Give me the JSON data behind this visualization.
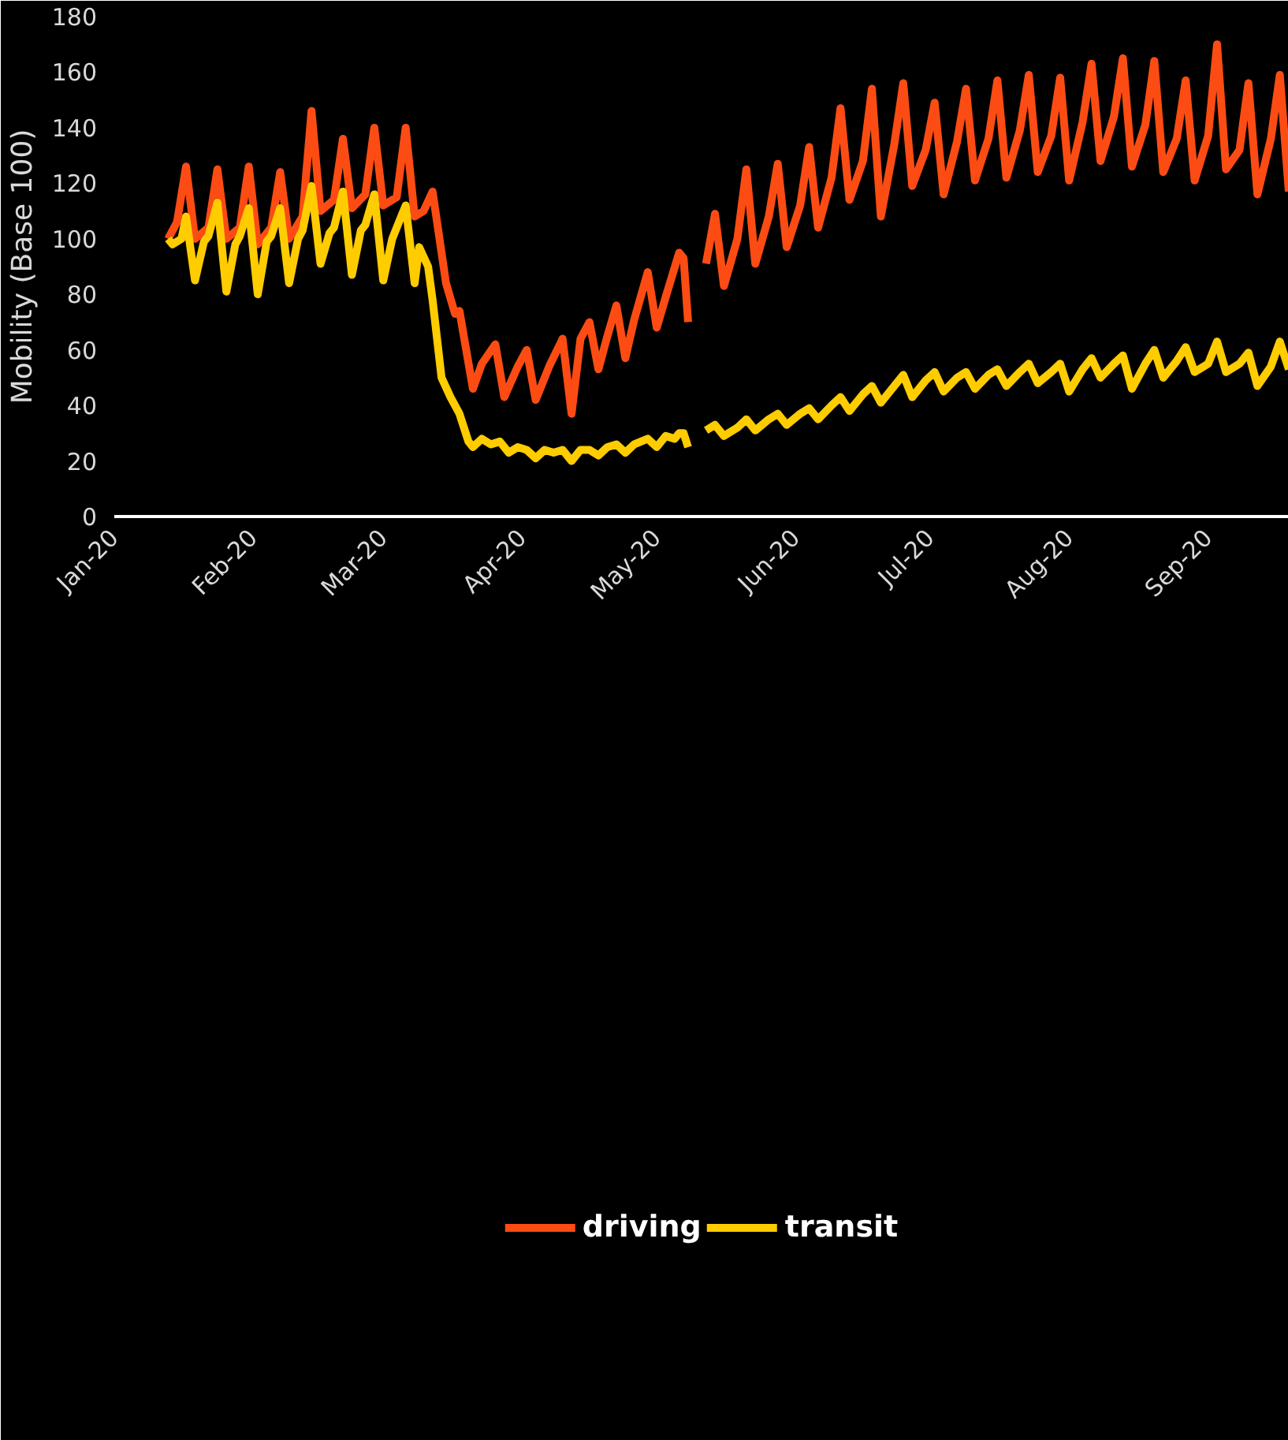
{
  "chart_data": {
    "type": "line",
    "ylabel": "Mobility (Base 100)",
    "ylim": [
      0,
      180
    ],
    "yticks": [
      0,
      20,
      40,
      60,
      80,
      100,
      120,
      140,
      160,
      180
    ],
    "xlim": [
      "2020-01-01",
      "2020-09-19"
    ],
    "xticks": [
      {
        "value": "2020-01-01",
        "label": "Jan-20"
      },
      {
        "value": "2020-02-01",
        "label": "Feb-20"
      },
      {
        "value": "2020-03-01",
        "label": "Mar-20"
      },
      {
        "value": "2020-04-01",
        "label": "Apr-20"
      },
      {
        "value": "2020-05-01",
        "label": "May-20"
      },
      {
        "value": "2020-06-01",
        "label": "Jun-20"
      },
      {
        "value": "2020-07-01",
        "label": "Jul-20"
      },
      {
        "value": "2020-08-01",
        "label": "Aug-20"
      },
      {
        "value": "2020-09-01",
        "label": "Sep-20"
      }
    ],
    "grid": false,
    "legend": "bottom",
    "marker": "none",
    "line_style": "solid",
    "series": [
      {
        "name": "driving",
        "color": "#fc4c13",
        "x": [
          "2020-01-13",
          "2020-01-15",
          "2020-01-17",
          "2020-01-19",
          "2020-01-22",
          "2020-01-24",
          "2020-01-26",
          "2020-01-29",
          "2020-01-31",
          "2020-02-02",
          "2020-02-05",
          "2020-02-07",
          "2020-02-09",
          "2020-02-12",
          "2020-02-14",
          "2020-02-16",
          "2020-02-19",
          "2020-02-21",
          "2020-02-23",
          "2020-02-26",
          "2020-02-28",
          "2020-03-01",
          "2020-03-04",
          "2020-03-06",
          "2020-03-08",
          "2020-03-10",
          "2020-03-12",
          "2020-03-15",
          "2020-03-17",
          "2020-03-18",
          "2020-03-21",
          "2020-03-23",
          "2020-03-26",
          "2020-03-28",
          "2020-03-31",
          "2020-04-02",
          "2020-04-04",
          "2020-04-07",
          "2020-04-10",
          "2020-04-12",
          "2020-04-14",
          "2020-04-16",
          "2020-04-18",
          "2020-04-20",
          "2020-04-22",
          "2020-04-24",
          "2020-04-26",
          "2020-04-29",
          "2020-05-01",
          "2020-05-03",
          "2020-05-06",
          "2020-05-07",
          "2020-05-08",
          "2020-05-10",
          "2020-05-12",
          "2020-05-14",
          "2020-05-16",
          "2020-05-19",
          "2020-05-21",
          "2020-05-23",
          "2020-05-26",
          "2020-05-28",
          "2020-05-30",
          "2020-06-02",
          "2020-06-04",
          "2020-06-06",
          "2020-06-09",
          "2020-06-11",
          "2020-06-13",
          "2020-06-16",
          "2020-06-18",
          "2020-06-20",
          "2020-06-23",
          "2020-06-25",
          "2020-06-27",
          "2020-06-30",
          "2020-07-02",
          "2020-07-04",
          "2020-07-07",
          "2020-07-09",
          "2020-07-11",
          "2020-07-14",
          "2020-07-16",
          "2020-07-18",
          "2020-07-21",
          "2020-07-23",
          "2020-07-25",
          "2020-07-28",
          "2020-07-30",
          "2020-08-01",
          "2020-08-04",
          "2020-08-06",
          "2020-08-08",
          "2020-08-11",
          "2020-08-13",
          "2020-08-15",
          "2020-08-18",
          "2020-08-20",
          "2020-08-22",
          "2020-08-25",
          "2020-08-27",
          "2020-08-29",
          "2020-09-01",
          "2020-09-03",
          "2020-09-05",
          "2020-09-08",
          "2020-09-10",
          "2020-09-12",
          "2020-09-15",
          "2020-09-17",
          "2020-09-19"
        ],
        "values": [
          100,
          106,
          126,
          100,
          104,
          125,
          100,
          104,
          126,
          98,
          104,
          124,
          100,
          108,
          146,
          110,
          114,
          136,
          111,
          116,
          140,
          112,
          115,
          140,
          108,
          110,
          117,
          84,
          73,
          74,
          46,
          55,
          62,
          43,
          54,
          60,
          42,
          54,
          64,
          37,
          64,
          70,
          53,
          65,
          76,
          57,
          71,
          88,
          68,
          79,
          95,
          93,
          70,
          null,
          91,
          109,
          83,
          100,
          125,
          91,
          108,
          127,
          97,
          112,
          133,
          104,
          122,
          147,
          114,
          128,
          154,
          108,
          134,
          156,
          119,
          132,
          149,
          116,
          135,
          154,
          121,
          136,
          157,
          122,
          139,
          159,
          124,
          137,
          158,
          121,
          142,
          163,
          128,
          144,
          165,
          126,
          141,
          164,
          124,
          136,
          157,
          121,
          137,
          170,
          125,
          132,
          156,
          116,
          136,
          159,
          117
        ]
      },
      {
        "name": "transit",
        "color": "#ffcc00",
        "x": [
          "2020-01-13",
          "2020-01-14",
          "2020-01-16",
          "2020-01-17",
          "2020-01-19",
          "2020-01-21",
          "2020-01-22",
          "2020-01-24",
          "2020-01-26",
          "2020-01-28",
          "2020-01-29",
          "2020-01-31",
          "2020-02-02",
          "2020-02-04",
          "2020-02-05",
          "2020-02-07",
          "2020-02-09",
          "2020-02-11",
          "2020-02-12",
          "2020-02-14",
          "2020-02-16",
          "2020-02-18",
          "2020-02-19",
          "2020-02-21",
          "2020-02-23",
          "2020-02-25",
          "2020-02-26",
          "2020-02-28",
          "2020-03-01",
          "2020-03-03",
          "2020-03-04",
          "2020-03-06",
          "2020-03-08",
          "2020-03-09",
          "2020-03-11",
          "2020-03-12",
          "2020-03-14",
          "2020-03-16",
          "2020-03-18",
          "2020-03-20",
          "2020-03-21",
          "2020-03-23",
          "2020-03-25",
          "2020-03-27",
          "2020-03-29",
          "2020-03-31",
          "2020-04-02",
          "2020-04-04",
          "2020-04-06",
          "2020-04-08",
          "2020-04-10",
          "2020-04-12",
          "2020-04-14",
          "2020-04-16",
          "2020-04-18",
          "2020-04-20",
          "2020-04-22",
          "2020-04-24",
          "2020-04-26",
          "2020-04-29",
          "2020-05-01",
          "2020-05-03",
          "2020-05-05",
          "2020-05-06",
          "2020-05-07",
          "2020-05-08",
          "2020-05-10",
          "2020-05-12",
          "2020-05-14",
          "2020-05-16",
          "2020-05-19",
          "2020-05-21",
          "2020-05-23",
          "2020-05-26",
          "2020-05-28",
          "2020-05-30",
          "2020-06-02",
          "2020-06-04",
          "2020-06-06",
          "2020-06-09",
          "2020-06-11",
          "2020-06-13",
          "2020-06-16",
          "2020-06-18",
          "2020-06-20",
          "2020-06-23",
          "2020-06-25",
          "2020-06-27",
          "2020-06-30",
          "2020-07-02",
          "2020-07-04",
          "2020-07-07",
          "2020-07-09",
          "2020-07-11",
          "2020-07-14",
          "2020-07-16",
          "2020-07-18",
          "2020-07-21",
          "2020-07-23",
          "2020-07-25",
          "2020-07-28",
          "2020-07-30",
          "2020-08-01",
          "2020-08-04",
          "2020-08-06",
          "2020-08-08",
          "2020-08-11",
          "2020-08-13",
          "2020-08-15",
          "2020-08-18",
          "2020-08-20",
          "2020-08-22",
          "2020-08-25",
          "2020-08-27",
          "2020-08-29",
          "2020-09-01",
          "2020-09-03",
          "2020-09-05",
          "2020-09-08",
          "2020-09-10",
          "2020-09-12",
          "2020-09-15",
          "2020-09-17",
          "2020-09-19"
        ],
        "values": [
          100,
          98,
          100,
          108,
          85,
          99,
          101,
          113,
          81,
          98,
          101,
          111,
          80,
          99,
          101,
          111,
          84,
          100,
          103,
          119,
          91,
          102,
          104,
          117,
          87,
          103,
          105,
          116,
          85,
          100,
          104,
          112,
          84,
          97,
          90,
          78,
          50,
          43,
          37,
          27,
          25,
          28,
          26,
          27,
          23,
          25,
          24,
          21,
          24,
          23,
          24,
          20,
          24,
          24,
          22,
          25,
          26,
          23,
          26,
          28,
          25,
          29,
          28,
          30,
          30,
          25,
          null,
          31,
          33,
          29,
          32,
          35,
          31,
          35,
          37,
          33,
          37,
          39,
          35,
          40,
          43,
          38,
          44,
          47,
          41,
          47,
          51,
          43,
          49,
          52,
          45,
          50,
          52,
          46,
          51,
          53,
          47,
          52,
          55,
          48,
          52,
          55,
          45,
          53,
          57,
          50,
          55,
          58,
          46,
          55,
          60,
          50,
          56,
          61,
          52,
          55,
          63,
          52,
          55,
          59,
          47,
          54,
          63,
          53
        ]
      }
    ]
  }
}
